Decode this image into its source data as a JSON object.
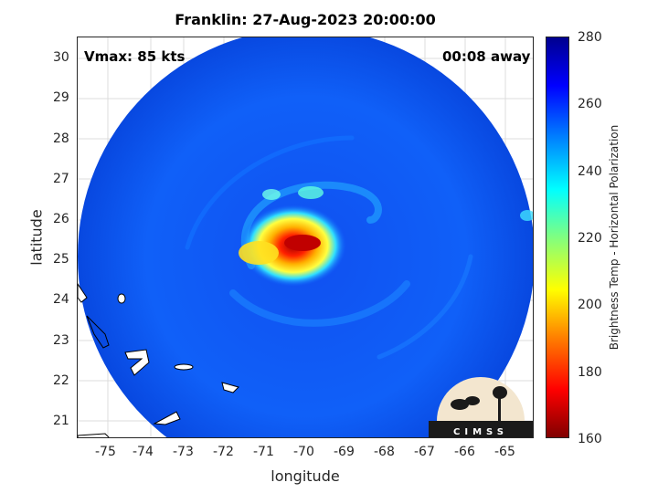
{
  "title": "Franklin: 27-Aug-2023 20:00:00",
  "vmax_text": "Vmax: 85 kts",
  "away_text": "00:08 away",
  "axes": {
    "xlabel": "longitude",
    "ylabel": "latitude",
    "x_ticks": [
      "-75",
      "-74",
      "-73",
      "-72",
      "-71",
      "-70",
      "-69",
      "-68",
      "-67",
      "-66",
      "-65"
    ],
    "y_ticks": [
      "30",
      "29",
      "28",
      "27",
      "26",
      "25",
      "24",
      "23",
      "22",
      "21"
    ]
  },
  "colorbar": {
    "label": "Brightness Temp - Horizontal Polarization",
    "ticks": [
      "280",
      "260",
      "240",
      "220",
      "200",
      "180",
      "160"
    ]
  },
  "logo": {
    "text": "CIMSS"
  }
}
